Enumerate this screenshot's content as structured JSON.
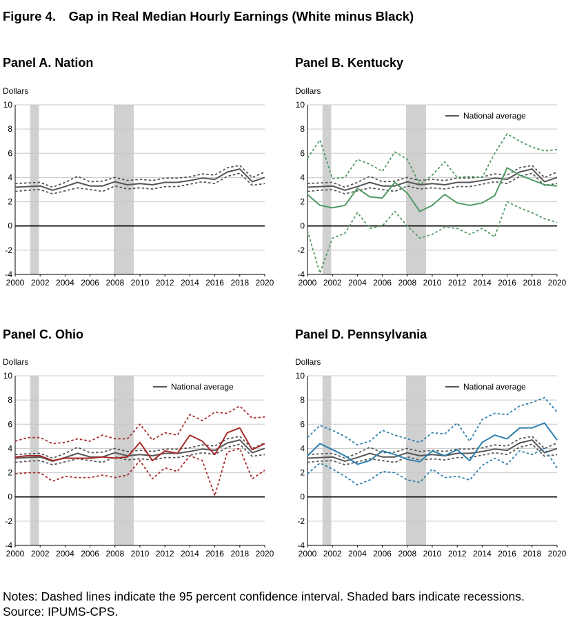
{
  "figure_title": "Figure 4. Gap in Real Median Hourly Earnings (White minus Black)",
  "notes": {
    "line1": "Notes: Dashed lines indicate the 95 percent confidence interval. Shaded bars indicate recessions.",
    "line2": "Source: IPUMS-CPS."
  },
  "colors": {
    "national": "#555555",
    "kentucky": "#4e9a63",
    "ohio": "#a82a2a",
    "pennsylvania": "#2e7fac",
    "recession": "#d0d0d0"
  },
  "chart_data": [
    {
      "type": "line",
      "title": "Panel A. Nation",
      "ylabel": "Dollars",
      "ylim": [
        -4,
        10
      ],
      "yticks": [
        -4,
        -2,
        0,
        2,
        4,
        6,
        8,
        10
      ],
      "xlim": [
        2000,
        2020
      ],
      "xticks": [
        2000,
        2002,
        2004,
        2006,
        2008,
        2010,
        2012,
        2014,
        2016,
        2018,
        2020
      ],
      "recessions": [
        [
          2001.2,
          2001.9
        ],
        [
          2007.9,
          2009.5
        ]
      ],
      "x": [
        2000,
        2001,
        2002,
        2003,
        2004,
        2005,
        2006,
        2007,
        2008,
        2009,
        2010,
        2011,
        2012,
        2013,
        2014,
        2015,
        2016,
        2017,
        2018,
        2019,
        2020
      ],
      "series": [
        {
          "values": [
            3.2,
            3.25,
            3.3,
            2.95,
            3.25,
            3.6,
            3.3,
            3.3,
            3.65,
            3.4,
            3.5,
            3.4,
            3.6,
            3.6,
            3.75,
            3.95,
            3.85,
            4.45,
            4.7,
            3.65,
            4.0
          ],
          "style": "solid",
          "color": "#555555"
        },
        {
          "values": [
            3.5,
            3.55,
            3.6,
            3.2,
            3.6,
            4.1,
            3.65,
            3.7,
            4.0,
            3.75,
            3.85,
            3.75,
            3.95,
            3.95,
            4.05,
            4.3,
            4.2,
            4.8,
            5.0,
            4.0,
            4.45
          ],
          "style": "dashed",
          "color": "#555555"
        },
        {
          "values": [
            2.85,
            2.95,
            3.0,
            2.65,
            2.9,
            3.15,
            3.0,
            2.85,
            3.3,
            3.05,
            3.15,
            3.05,
            3.25,
            3.25,
            3.45,
            3.65,
            3.5,
            4.1,
            4.35,
            3.35,
            3.5
          ],
          "style": "dashed",
          "color": "#555555"
        }
      ]
    },
    {
      "type": "line",
      "title": "Panel B. Kentucky",
      "ylabel": "Dollars",
      "ylim": [
        -4,
        10
      ],
      "yticks": [
        -4,
        -2,
        0,
        2,
        4,
        6,
        8,
        10
      ],
      "xlim": [
        2000,
        2020
      ],
      "xticks": [
        2000,
        2002,
        2004,
        2006,
        2008,
        2010,
        2012,
        2014,
        2016,
        2018,
        2020
      ],
      "recessions": [
        [
          2001.2,
          2001.9
        ],
        [
          2007.9,
          2009.5
        ]
      ],
      "legend": {
        "label": "National average",
        "position": "top-right"
      },
      "x": [
        2000,
        2001,
        2002,
        2003,
        2004,
        2005,
        2006,
        2007,
        2008,
        2009,
        2010,
        2011,
        2012,
        2013,
        2014,
        2015,
        2016,
        2017,
        2018,
        2019,
        2020
      ],
      "series": [
        {
          "values": [
            3.2,
            3.25,
            3.3,
            2.95,
            3.25,
            3.6,
            3.3,
            3.3,
            3.65,
            3.4,
            3.5,
            3.4,
            3.6,
            3.6,
            3.75,
            3.95,
            3.85,
            4.45,
            4.7,
            3.65,
            4.0
          ],
          "style": "solid",
          "color": "#555555"
        },
        {
          "values": [
            3.5,
            3.55,
            3.6,
            3.2,
            3.6,
            4.1,
            3.65,
            3.7,
            4.0,
            3.75,
            3.85,
            3.75,
            3.95,
            3.95,
            4.05,
            4.3,
            4.2,
            4.8,
            5.0,
            4.0,
            4.45
          ],
          "style": "dashed",
          "color": "#555555"
        },
        {
          "values": [
            2.85,
            2.95,
            3.0,
            2.65,
            2.9,
            3.15,
            3.0,
            2.85,
            3.3,
            3.05,
            3.15,
            3.05,
            3.25,
            3.25,
            3.45,
            3.65,
            3.5,
            4.1,
            4.35,
            3.35,
            3.5
          ],
          "style": "dashed",
          "color": "#555555"
        },
        {
          "values": [
            2.6,
            1.7,
            1.5,
            1.7,
            3.1,
            2.4,
            2.3,
            3.6,
            2.7,
            1.2,
            1.7,
            2.6,
            1.9,
            1.7,
            1.9,
            2.5,
            4.8,
            4.2,
            3.8,
            3.4,
            3.3
          ],
          "style": "solid",
          "color": "#4e9a63"
        },
        {
          "values": [
            5.6,
            7.1,
            3.9,
            4.0,
            5.5,
            5.1,
            4.5,
            6.1,
            5.5,
            3.4,
            4.2,
            5.3,
            4.0,
            4.1,
            4.0,
            6.0,
            7.6,
            7.0,
            6.5,
            6.2,
            6.3
          ],
          "style": "dashed",
          "color": "#4e9a63"
        },
        {
          "values": [
            -0.4,
            -3.9,
            -1.0,
            -0.6,
            1.1,
            -0.2,
            0.0,
            1.2,
            0.0,
            -1.0,
            -0.7,
            -0.1,
            -0.2,
            -0.7,
            -0.2,
            -0.9,
            2.0,
            1.5,
            1.1,
            0.6,
            0.3
          ],
          "style": "dashed",
          "color": "#4e9a63"
        }
      ]
    },
    {
      "type": "line",
      "title": "Panel C. Ohio",
      "ylabel": "Dollars",
      "ylim": [
        -4,
        10
      ],
      "yticks": [
        -4,
        -2,
        0,
        2,
        4,
        6,
        8,
        10
      ],
      "xlim": [
        2000,
        2020
      ],
      "xticks": [
        2000,
        2002,
        2004,
        2006,
        2008,
        2010,
        2012,
        2014,
        2016,
        2018,
        2020
      ],
      "recessions": [
        [
          2001.2,
          2001.9
        ],
        [
          2007.9,
          2009.5
        ]
      ],
      "legend": {
        "label": "National average",
        "position": "top-right"
      },
      "x": [
        2000,
        2001,
        2002,
        2003,
        2004,
        2005,
        2006,
        2007,
        2008,
        2009,
        2010,
        2011,
        2012,
        2013,
        2014,
        2015,
        2016,
        2017,
        2018,
        2019,
        2020
      ],
      "series": [
        {
          "values": [
            3.2,
            3.25,
            3.3,
            2.95,
            3.25,
            3.6,
            3.3,
            3.3,
            3.65,
            3.4,
            3.5,
            3.4,
            3.6,
            3.6,
            3.75,
            3.95,
            3.85,
            4.45,
            4.7,
            3.65,
            4.0
          ],
          "style": "solid",
          "color": "#555555"
        },
        {
          "values": [
            3.5,
            3.55,
            3.6,
            3.2,
            3.6,
            4.1,
            3.65,
            3.7,
            4.0,
            3.75,
            3.85,
            3.75,
            3.95,
            3.95,
            4.05,
            4.3,
            4.2,
            4.8,
            5.0,
            4.0,
            4.45
          ],
          "style": "dashed",
          "color": "#555555"
        },
        {
          "values": [
            2.85,
            2.95,
            3.0,
            2.65,
            2.9,
            3.15,
            3.0,
            2.85,
            3.3,
            3.05,
            3.15,
            3.05,
            3.25,
            3.25,
            3.45,
            3.65,
            3.5,
            4.1,
            4.35,
            3.35,
            3.5
          ],
          "style": "dashed",
          "color": "#555555"
        },
        {
          "values": [
            3.3,
            3.4,
            3.4,
            3.0,
            3.2,
            3.2,
            3.2,
            3.3,
            3.2,
            3.3,
            4.5,
            3.0,
            3.8,
            3.6,
            5.1,
            4.6,
            3.5,
            5.3,
            5.7,
            3.9,
            4.4
          ],
          "style": "solid",
          "color": "#a82a2a"
        },
        {
          "values": [
            4.6,
            4.9,
            4.9,
            4.4,
            4.5,
            4.8,
            4.6,
            5.1,
            4.8,
            4.8,
            6.0,
            4.7,
            5.3,
            5.1,
            6.8,
            6.3,
            7.0,
            6.9,
            7.5,
            6.5,
            6.6
          ],
          "style": "dashed",
          "color": "#a82a2a"
        },
        {
          "values": [
            1.9,
            2.0,
            2.0,
            1.3,
            1.7,
            1.6,
            1.6,
            1.8,
            1.6,
            1.8,
            3.0,
            1.5,
            2.4,
            2.1,
            3.4,
            3.0,
            0.1,
            3.7,
            4.0,
            1.5,
            2.2
          ],
          "style": "dashed",
          "color": "#a82a2a"
        }
      ]
    },
    {
      "type": "line",
      "title": "Panel D. Pennsylvania",
      "ylabel": "Dollars",
      "ylim": [
        -4,
        10
      ],
      "yticks": [
        -4,
        -2,
        0,
        2,
        4,
        6,
        8,
        10
      ],
      "xlim": [
        2000,
        2020
      ],
      "xticks": [
        2000,
        2002,
        2004,
        2006,
        2008,
        2010,
        2012,
        2014,
        2016,
        2018,
        2020
      ],
      "recessions": [
        [
          2001.2,
          2001.9
        ],
        [
          2007.9,
          2009.5
        ]
      ],
      "legend": {
        "label": "National average",
        "position": "top-right"
      },
      "x": [
        2000,
        2001,
        2002,
        2003,
        2004,
        2005,
        2006,
        2007,
        2008,
        2009,
        2010,
        2011,
        2012,
        2013,
        2014,
        2015,
        2016,
        2017,
        2018,
        2019,
        2020
      ],
      "series": [
        {
          "values": [
            3.2,
            3.25,
            3.3,
            2.95,
            3.25,
            3.6,
            3.3,
            3.3,
            3.65,
            3.4,
            3.5,
            3.4,
            3.6,
            3.6,
            3.75,
            3.95,
            3.85,
            4.45,
            4.7,
            3.65,
            4.0
          ],
          "style": "solid",
          "color": "#555555"
        },
        {
          "values": [
            3.5,
            3.55,
            3.6,
            3.2,
            3.6,
            4.1,
            3.65,
            3.7,
            4.0,
            3.75,
            3.85,
            3.75,
            3.95,
            3.95,
            4.05,
            4.3,
            4.2,
            4.8,
            5.0,
            4.0,
            4.45
          ],
          "style": "dashed",
          "color": "#555555"
        },
        {
          "values": [
            2.85,
            2.95,
            3.0,
            2.65,
            2.9,
            3.15,
            3.0,
            2.85,
            3.3,
            3.05,
            3.15,
            3.05,
            3.25,
            3.25,
            3.45,
            3.65,
            3.5,
            4.1,
            4.35,
            3.35,
            3.5
          ],
          "style": "dashed",
          "color": "#555555"
        },
        {
          "values": [
            3.4,
            4.4,
            3.9,
            3.4,
            2.7,
            3.0,
            3.8,
            3.5,
            3.1,
            2.9,
            3.8,
            3.4,
            3.9,
            3.0,
            4.5,
            5.1,
            4.8,
            5.7,
            5.7,
            6.1,
            4.7
          ],
          "style": "solid",
          "color": "#2e7fac"
        },
        {
          "values": [
            4.9,
            5.9,
            5.5,
            5.0,
            4.3,
            4.6,
            5.5,
            5.1,
            4.8,
            4.5,
            5.3,
            5.2,
            6.1,
            4.6,
            6.4,
            6.9,
            6.8,
            7.5,
            7.8,
            8.2,
            7.0
          ],
          "style": "dashed",
          "color": "#2e7fac"
        },
        {
          "values": [
            1.9,
            2.8,
            2.3,
            1.7,
            1.0,
            1.4,
            2.1,
            2.0,
            1.4,
            1.2,
            2.3,
            1.6,
            1.7,
            1.4,
            2.6,
            3.2,
            2.7,
            3.8,
            3.5,
            4.0,
            2.4
          ],
          "style": "dashed",
          "color": "#2e7fac"
        }
      ]
    }
  ]
}
